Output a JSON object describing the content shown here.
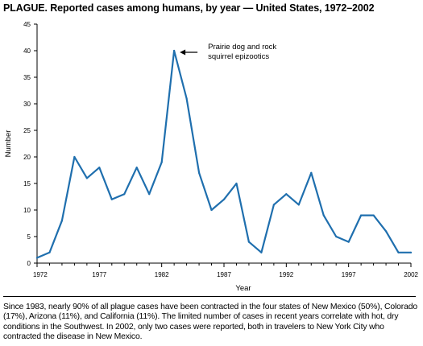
{
  "title": {
    "lead": "PLAGUE.",
    "text": "Reported cases among humans, by year — United States, 1972–2002"
  },
  "footnote": "Since 1983, nearly 90% of all plague cases have been contracted in the four states of New Mexico (50%), Colorado (17%), Arizona (11%), and California (11%). The limited number of cases in recent years correlate with hot, dry conditions in the Southwest. In 2002, only two cases were reported, both in travelers to New York City who contracted the disease in New Mexico.",
  "colors": {
    "line": "#1f6fae",
    "axis": "#000000"
  },
  "chart_data": {
    "type": "line",
    "title": "PLAGUE. Reported cases among humans, by year — United States, 1972–2002",
    "xlabel": "Year",
    "ylabel": "Number",
    "xlim": [
      1972,
      2002
    ],
    "ylim": [
      0,
      45
    ],
    "xticks": [
      1972,
      1977,
      1982,
      1987,
      1992,
      1997,
      2002
    ],
    "yticks": [
      0,
      5,
      10,
      15,
      20,
      25,
      30,
      35,
      40,
      45
    ],
    "grid": false,
    "series": [
      {
        "x": [
          1972,
          1973,
          1974,
          1975,
          1976,
          1977,
          1978,
          1979,
          1980,
          1981,
          1982,
          1983,
          1984,
          1985,
          1986,
          1987,
          1988,
          1989,
          1990,
          1991,
          1992,
          1993,
          1994,
          1995,
          1996,
          1997,
          1998,
          1999,
          2000,
          2001,
          2002
        ],
        "values": [
          1,
          2,
          8,
          20,
          16,
          18,
          12,
          13,
          18,
          13,
          19,
          40,
          31,
          17,
          10,
          12,
          15,
          4,
          2,
          11,
          13,
          11,
          17,
          9,
          5,
          4,
          9,
          9,
          6,
          2,
          2
        ]
      }
    ],
    "annotations": [
      {
        "lines": [
          "Prairie dog and rock",
          "squirrel epizootics"
        ],
        "x": 1983,
        "y": 40
      }
    ]
  }
}
